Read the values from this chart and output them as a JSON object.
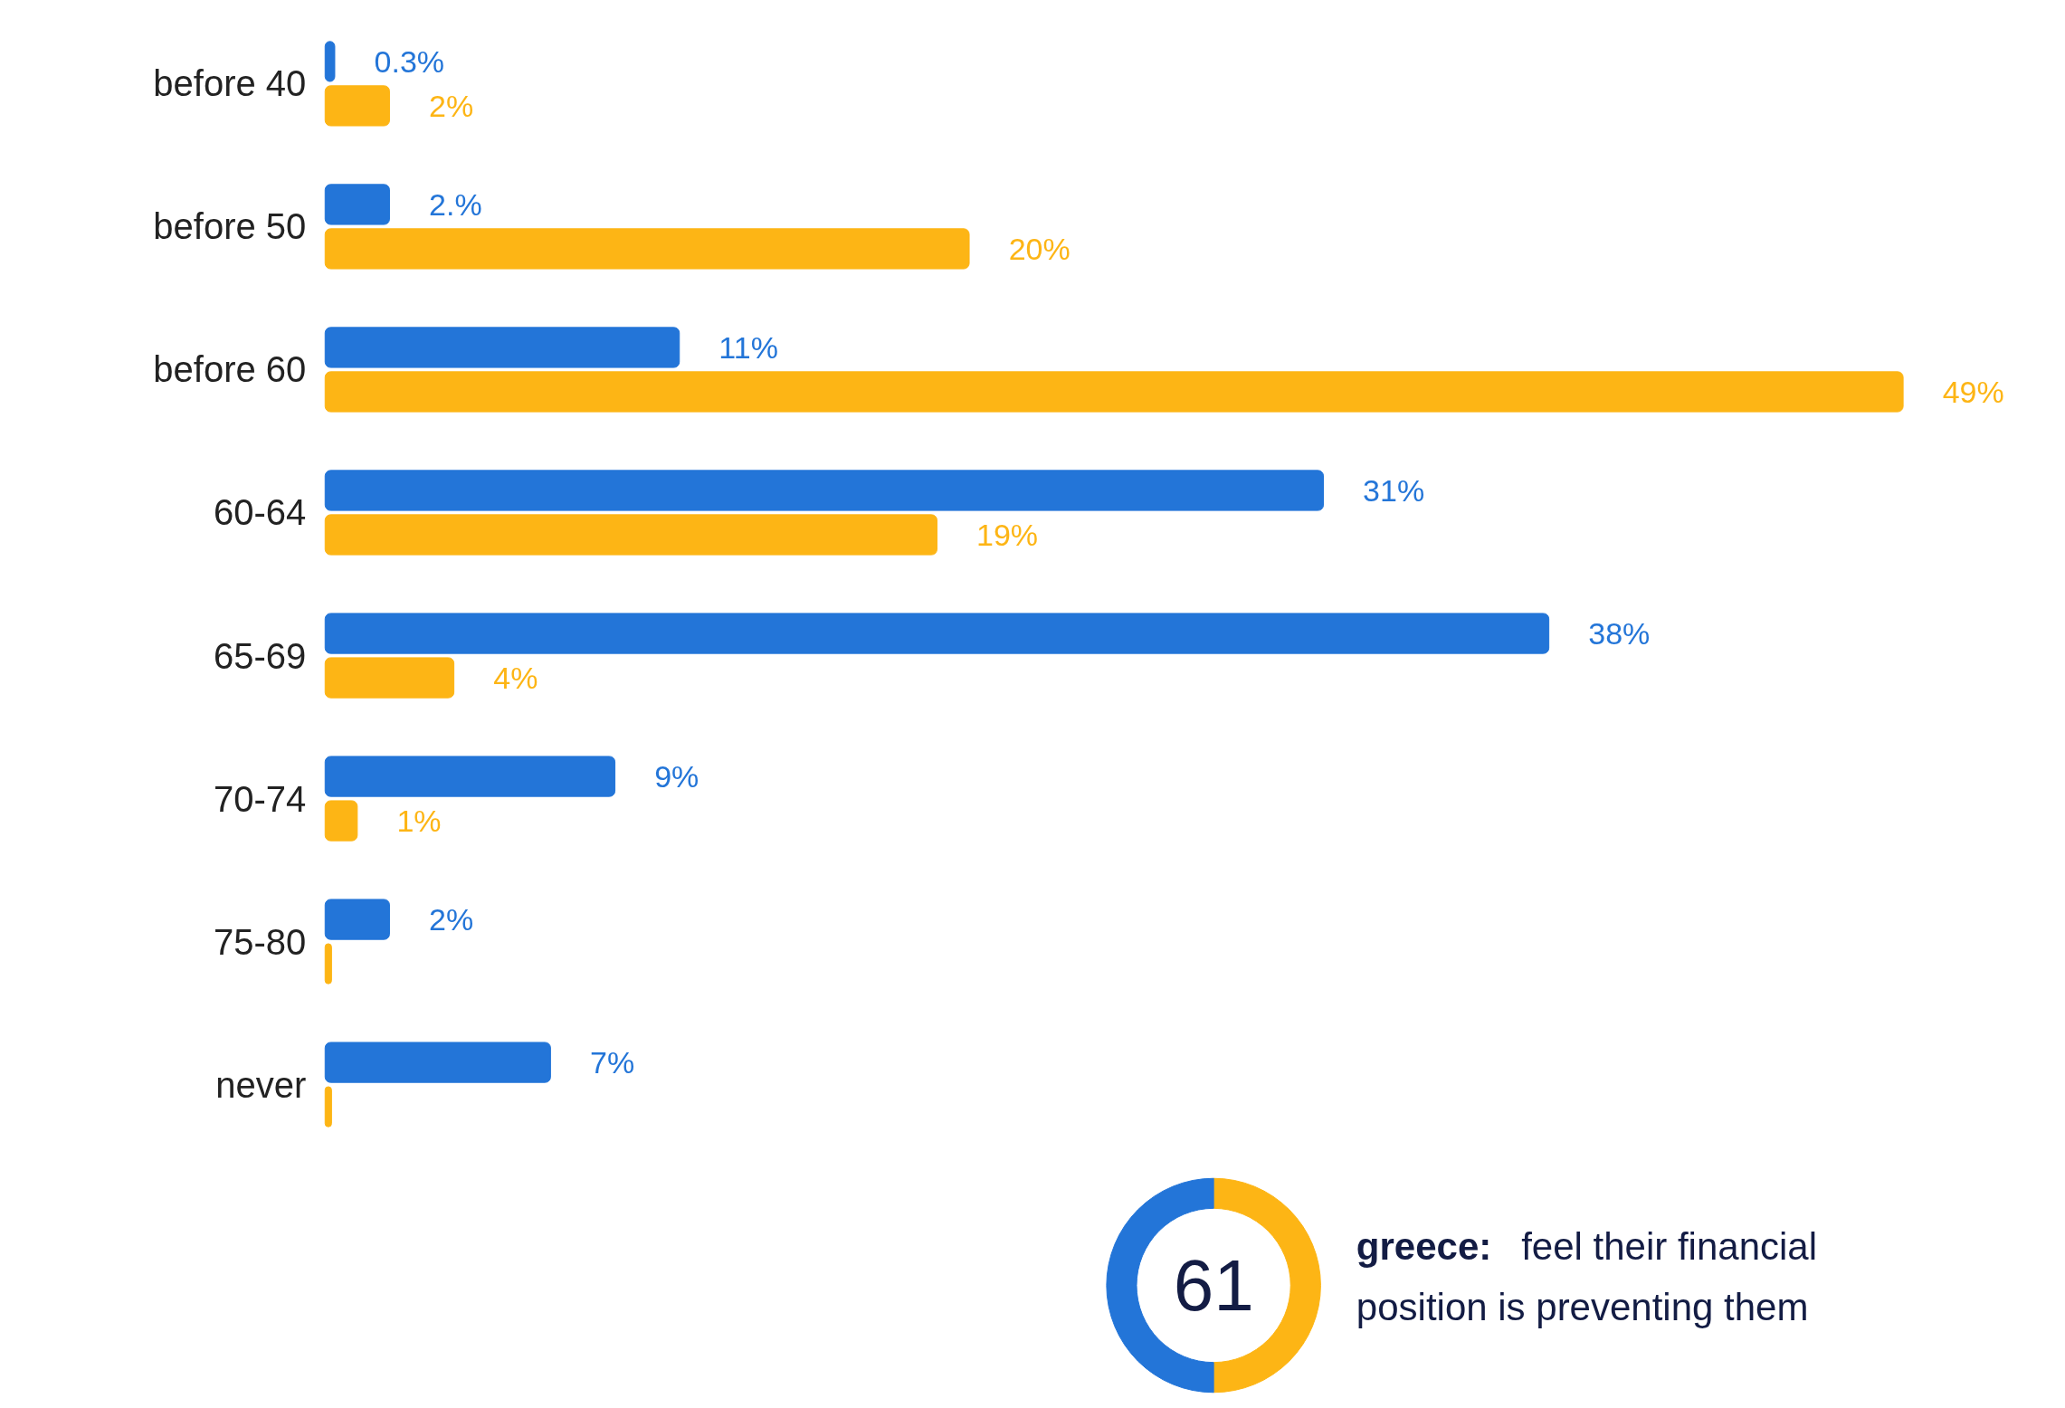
{
  "chart_data": [
    {
      "type": "bar",
      "orientation": "horizontal",
      "tick_labels": "y",
      "categories": [
        "before 40",
        "before 50",
        "before 60",
        "60-64",
        "65-69",
        "70-74",
        "75-80",
        "never"
      ],
      "series": [
        {
          "color": "#2375d8",
          "values": [
            0.3,
            2,
            11,
            31,
            38,
            9,
            2,
            7
          ],
          "value_labels": [
            "0.3%",
            "2.%",
            "11%",
            "31%",
            "38%",
            "9%",
            "2%",
            "7%"
          ]
        },
        {
          "color": "#fdb515",
          "values": [
            2,
            20,
            49,
            19,
            4,
            1,
            0.2,
            0.2
          ],
          "value_labels": [
            "2%",
            "20%",
            "49%",
            "19%",
            "4%",
            "1%",
            null,
            null
          ]
        }
      ]
    },
    {
      "type": "donut",
      "categories": [
        null,
        null
      ],
      "values": [
        50,
        50
      ],
      "colors": [
        "#fdb515",
        "#2375d8"
      ],
      "annotations": [
        "61",
        "greece:",
        "feel their financial",
        "position is preventing them"
      ]
    }
  ]
}
